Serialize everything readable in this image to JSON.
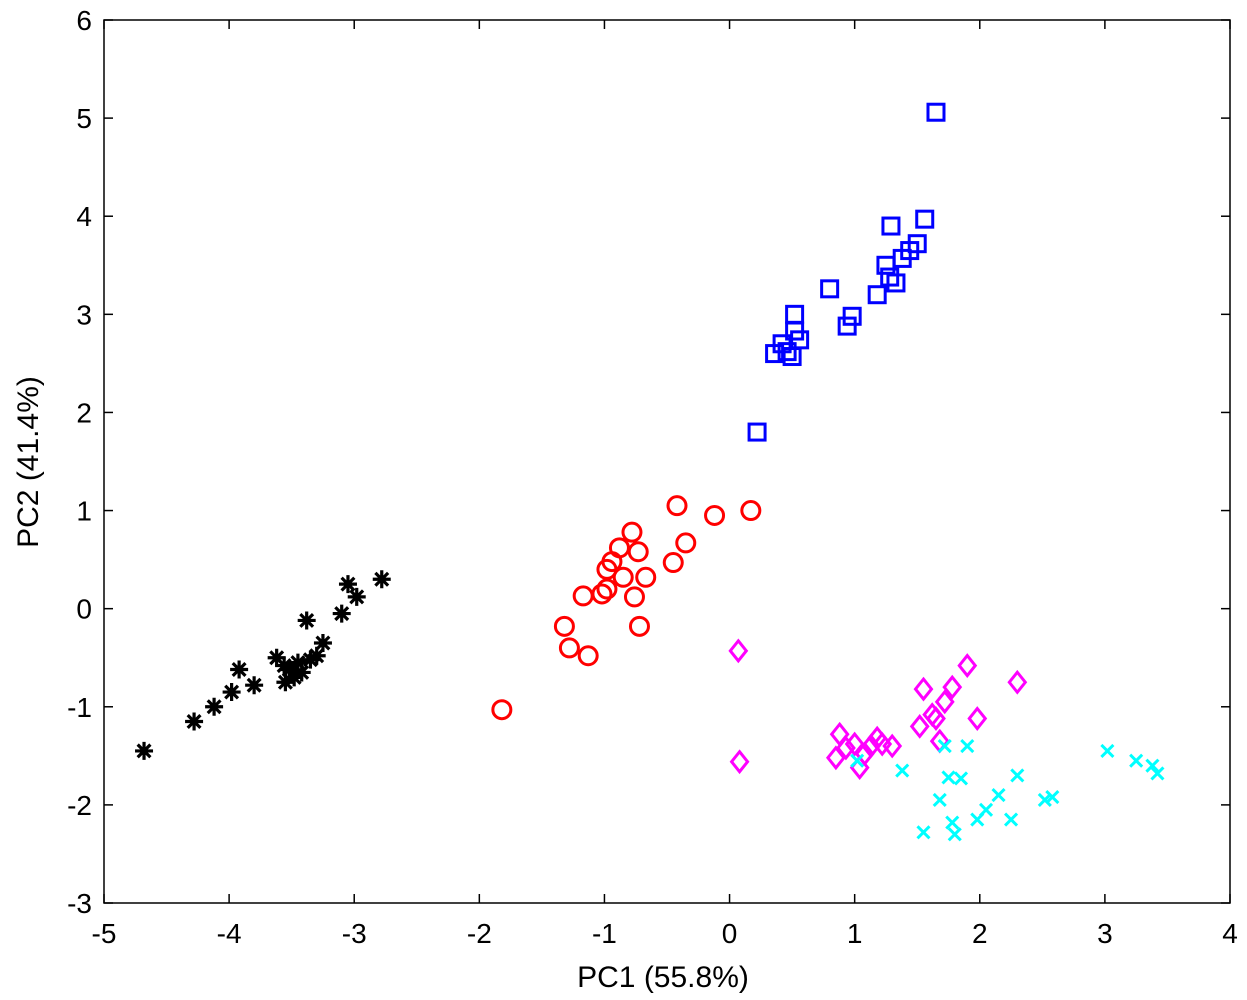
{
  "chart_data": {
    "type": "scatter",
    "title": "",
    "xlabel": "PC1 (55.8%)",
    "ylabel": "PC2 (41.4%)",
    "xlim": [
      -5,
      4
    ],
    "ylim": [
      -3,
      6
    ],
    "xticks": [
      -5,
      -4,
      -3,
      -2,
      -1,
      0,
      1,
      2,
      3,
      4
    ],
    "yticks": [
      -3,
      -2,
      -1,
      0,
      1,
      2,
      3,
      4,
      5,
      6
    ],
    "grid": false,
    "legend": "none",
    "series": [
      {
        "name": "black-asterisk",
        "marker": "asterisk",
        "color": "#000000",
        "points": [
          [
            -4.68,
            -1.45
          ],
          [
            -4.28,
            -1.15
          ],
          [
            -4.12,
            -1.0
          ],
          [
            -3.98,
            -0.85
          ],
          [
            -3.92,
            -0.62
          ],
          [
            -3.8,
            -0.78
          ],
          [
            -3.62,
            -0.5
          ],
          [
            -3.56,
            -0.58
          ],
          [
            -3.55,
            -0.75
          ],
          [
            -3.52,
            -0.62
          ],
          [
            -3.48,
            -0.7
          ],
          [
            -3.45,
            -0.55
          ],
          [
            -3.42,
            -0.65
          ],
          [
            -3.38,
            -0.12
          ],
          [
            -3.35,
            -0.52
          ],
          [
            -3.3,
            -0.48
          ],
          [
            -3.25,
            -0.35
          ],
          [
            -3.1,
            -0.05
          ],
          [
            -3.05,
            0.25
          ],
          [
            -2.98,
            0.12
          ],
          [
            -2.78,
            0.3
          ]
        ]
      },
      {
        "name": "red-circle",
        "marker": "circle",
        "color": "#ff0000",
        "points": [
          [
            -1.82,
            -1.03
          ],
          [
            -1.32,
            -0.18
          ],
          [
            -1.28,
            -0.4
          ],
          [
            -1.17,
            0.13
          ],
          [
            -1.13,
            -0.48
          ],
          [
            -1.02,
            0.15
          ],
          [
            -0.98,
            0.2
          ],
          [
            -0.98,
            0.4
          ],
          [
            -0.94,
            0.48
          ],
          [
            -0.88,
            0.62
          ],
          [
            -0.85,
            0.32
          ],
          [
            -0.78,
            0.78
          ],
          [
            -0.76,
            0.12
          ],
          [
            -0.73,
            0.58
          ],
          [
            -0.72,
            -0.18
          ],
          [
            -0.67,
            0.32
          ],
          [
            -0.45,
            0.47
          ],
          [
            -0.42,
            1.05
          ],
          [
            -0.35,
            0.67
          ],
          [
            -0.12,
            0.95
          ],
          [
            0.17,
            1.0
          ]
        ]
      },
      {
        "name": "blue-square",
        "marker": "square",
        "color": "#0000ff",
        "points": [
          [
            0.22,
            1.8
          ],
          [
            0.36,
            2.6
          ],
          [
            0.42,
            2.7
          ],
          [
            0.46,
            2.62
          ],
          [
            0.5,
            2.57
          ],
          [
            0.52,
            2.83
          ],
          [
            0.52,
            3.0
          ],
          [
            0.56,
            2.74
          ],
          [
            0.8,
            3.26
          ],
          [
            0.94,
            2.88
          ],
          [
            0.98,
            2.98
          ],
          [
            1.18,
            3.2
          ],
          [
            1.25,
            3.5
          ],
          [
            1.28,
            3.38
          ],
          [
            1.29,
            3.9
          ],
          [
            1.33,
            3.32
          ],
          [
            1.38,
            3.57
          ],
          [
            1.44,
            3.65
          ],
          [
            1.5,
            3.72
          ],
          [
            1.56,
            3.97
          ],
          [
            1.65,
            5.06
          ]
        ]
      },
      {
        "name": "magenta-diamond",
        "marker": "diamond",
        "color": "#ff00ff",
        "points": [
          [
            0.07,
            -0.43
          ],
          [
            0.08,
            -1.56
          ],
          [
            0.85,
            -1.52
          ],
          [
            0.88,
            -1.28
          ],
          [
            0.93,
            -1.42
          ],
          [
            1.0,
            -1.38
          ],
          [
            1.04,
            -1.62
          ],
          [
            1.08,
            -1.48
          ],
          [
            1.13,
            -1.4
          ],
          [
            1.18,
            -1.32
          ],
          [
            1.22,
            -1.38
          ],
          [
            1.3,
            -1.4
          ],
          [
            1.52,
            -1.2
          ],
          [
            1.55,
            -0.82
          ],
          [
            1.62,
            -1.08
          ],
          [
            1.65,
            -1.12
          ],
          [
            1.68,
            -1.35
          ],
          [
            1.72,
            -0.95
          ],
          [
            1.78,
            -0.8
          ],
          [
            1.9,
            -0.58
          ],
          [
            1.98,
            -1.12
          ],
          [
            2.3,
            -0.75
          ]
        ]
      },
      {
        "name": "cyan-cross",
        "marker": "cross",
        "color": "#00ffff",
        "points": [
          [
            1.02,
            -1.55
          ],
          [
            1.38,
            -1.65
          ],
          [
            1.55,
            -2.28
          ],
          [
            1.68,
            -1.95
          ],
          [
            1.72,
            -1.4
          ],
          [
            1.75,
            -1.72
          ],
          [
            1.78,
            -2.18
          ],
          [
            1.8,
            -2.3
          ],
          [
            1.85,
            -1.73
          ],
          [
            1.9,
            -1.4
          ],
          [
            1.98,
            -2.15
          ],
          [
            2.05,
            -2.05
          ],
          [
            2.15,
            -1.9
          ],
          [
            2.25,
            -2.15
          ],
          [
            2.3,
            -1.7
          ],
          [
            2.52,
            -1.95
          ],
          [
            2.58,
            -1.92
          ],
          [
            3.02,
            -1.45
          ],
          [
            3.25,
            -1.55
          ],
          [
            3.38,
            -1.6
          ],
          [
            3.42,
            -1.68
          ]
        ]
      }
    ]
  }
}
